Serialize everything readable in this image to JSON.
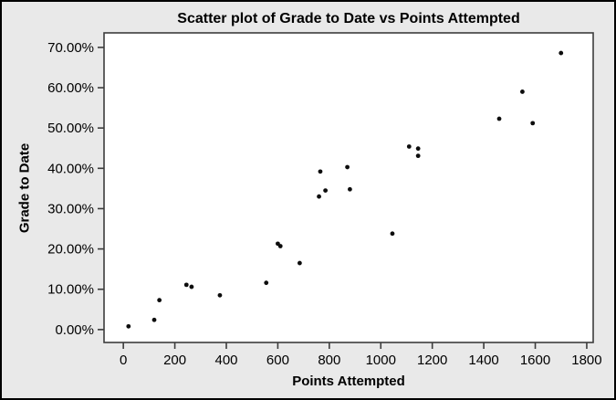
{
  "figure": {
    "background_color": "#e9e9e9",
    "plot_background_color": "#ffffff",
    "outer_border_color": "#000000",
    "axis_color": "#3c3c3c",
    "text_color": "#000000",
    "point_color": "#0d0d0d"
  },
  "chart_data": {
    "type": "scatter",
    "title": "Scatter plot of Grade to Date vs Points Attempted",
    "xlabel": "Points Attempted",
    "ylabel": "Grade to Date",
    "xlim": [
      -75,
      1825
    ],
    "ylim": [
      -3.2,
      73.6
    ],
    "grid": false,
    "legend": null,
    "x_ticks": [
      0,
      200,
      400,
      600,
      800,
      1000,
      1200,
      1400,
      1600,
      1800
    ],
    "x_tick_labels": [
      "0",
      "200",
      "400",
      "600",
      "800",
      "1000",
      "1200",
      "1400",
      "1600",
      "1800"
    ],
    "y_ticks": [
      0,
      10,
      20,
      30,
      40,
      50,
      60,
      70
    ],
    "y_tick_labels": [
      "0.00%",
      "10.00%",
      "20.00%",
      "30.00%",
      "40.00%",
      "50.00%",
      "60.00%",
      "70.00%"
    ],
    "points_unit": "[points_attempted, grade_to_date_percent]",
    "points": [
      [
        20,
        0.8
      ],
      [
        120,
        2.4
      ],
      [
        140,
        7.3
      ],
      [
        245,
        11.1
      ],
      [
        265,
        10.6
      ],
      [
        375,
        8.5
      ],
      [
        555,
        11.6
      ],
      [
        600,
        21.3
      ],
      [
        610,
        20.7
      ],
      [
        685,
        16.5
      ],
      [
        760,
        33.0
      ],
      [
        765,
        39.2
      ],
      [
        785,
        34.5
      ],
      [
        870,
        40.3
      ],
      [
        880,
        34.8
      ],
      [
        1045,
        23.8
      ],
      [
        1110,
        45.4
      ],
      [
        1145,
        44.9
      ],
      [
        1145,
        43.1
      ],
      [
        1460,
        52.3
      ],
      [
        1550,
        59.0
      ],
      [
        1590,
        51.2
      ],
      [
        1700,
        68.6
      ]
    ]
  }
}
